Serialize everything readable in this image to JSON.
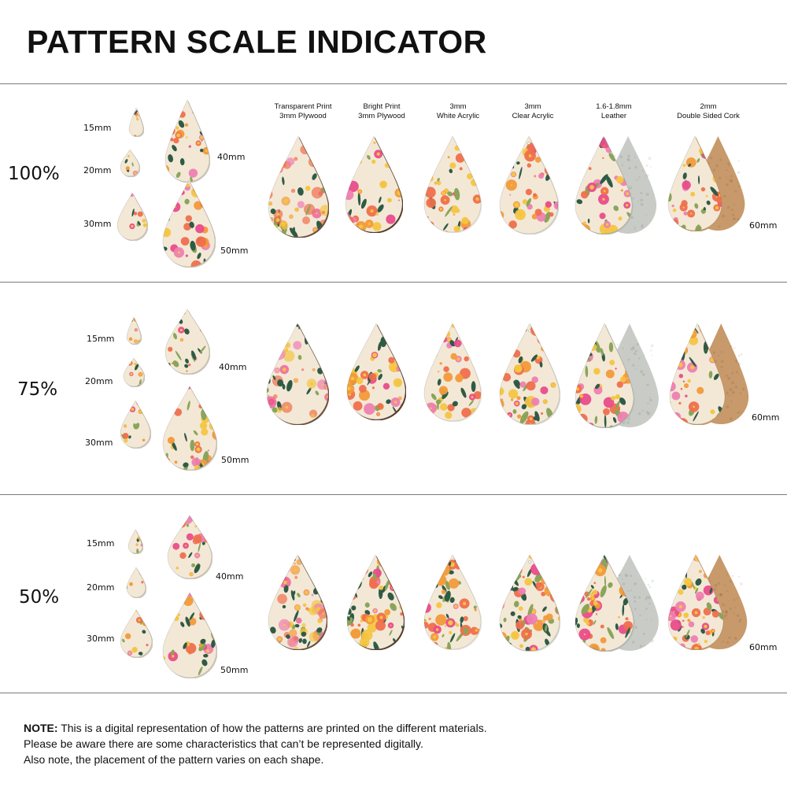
{
  "title": "PATTERN SCALE INDICATOR",
  "columns": [
    {
      "line1": "Transparent Print",
      "line2": "3mm Plywood",
      "edge": "#6e5240"
    },
    {
      "line1": "Bright Print",
      "line2": "3mm Plywood",
      "edge": "#5a3f2e"
    },
    {
      "line1": "3mm",
      "line2": "White Acrylic",
      "edge": "#e9e6dc"
    },
    {
      "line1": "3mm",
      "line2": "Clear Acrylic",
      "edge": "#d7d7d0"
    },
    {
      "line1": "1.6-1.8mm",
      "line2": "Leather",
      "edge": "#b9bdb5",
      "backing": "#c9ccc6"
    },
    {
      "line1": "2mm",
      "line2": "Double Sided Cork",
      "edge": "#c79a6a",
      "backing": "#c8996a"
    }
  ],
  "sections": [
    {
      "label": "100%",
      "sizes": [
        "15mm",
        "20mm",
        "30mm",
        "40mm",
        "50mm"
      ],
      "size_60": "60mm"
    },
    {
      "label": "75%",
      "sizes": [
        "15mm",
        "20mm",
        "30mm",
        "40mm",
        "50mm"
      ],
      "size_60": "60mm"
    },
    {
      "label": "50%",
      "sizes": [
        "15mm",
        "20mm",
        "30mm",
        "40mm",
        "50mm"
      ],
      "size_60": "60mm"
    }
  ],
  "note": {
    "lead": "NOTE:",
    "line1": " This is a digital representation of how the patterns are printed on the different materials.",
    "line2": "Please be aware there are some characteristics that can’t be represented digitally.",
    "line3": "Also note, the placement of the pattern varies on each shape."
  },
  "colors": {
    "cream": "#f3e8d6",
    "coral": "#ef6f4d",
    "orange": "#f29a3a",
    "pink": "#ee7fb0",
    "hotpink": "#e94c8b",
    "leaf": "#2f5b45",
    "olive": "#8aa55a",
    "yellow": "#f4c542",
    "rule": "#7a7a7a"
  },
  "icons": [
    "teardrop-swatch-icon",
    "hole-icon"
  ]
}
